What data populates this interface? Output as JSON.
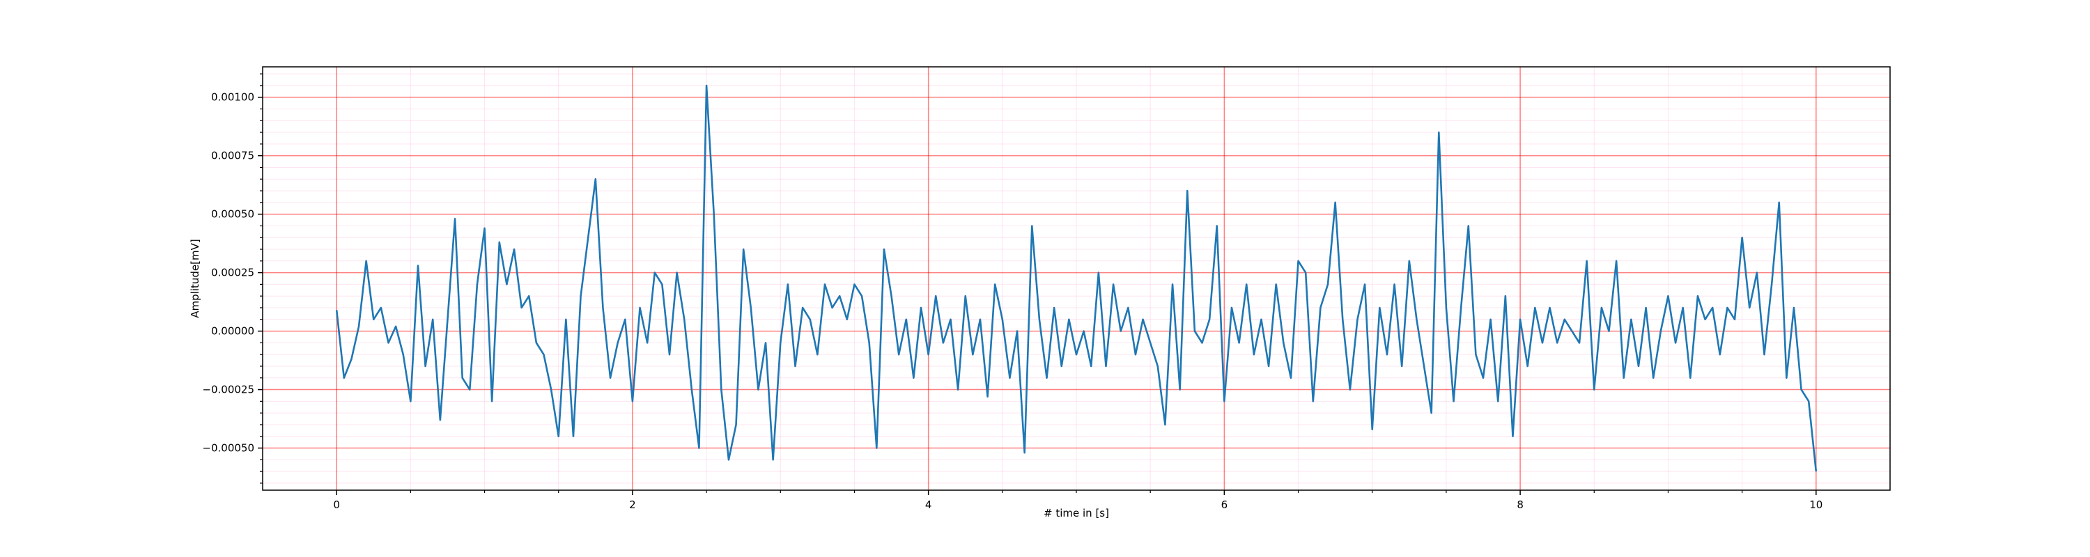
{
  "chart_data": {
    "type": "line",
    "xlabel": "# time in [s]",
    "ylabel": "Amplitude[mV]",
    "color": "#1f77b4",
    "grid": true,
    "minor_grid": true,
    "xlim": [
      -0.5,
      10.5
    ],
    "ylim": [
      -0.00068,
      0.00113
    ],
    "xticks": [
      0,
      2,
      4,
      6,
      8,
      10
    ],
    "yticks": [
      {
        "value": -0.0005,
        "label": "−0.00050"
      },
      {
        "value": -0.00025,
        "label": "−0.00025"
      },
      {
        "value": 0,
        "label": "0.00000"
      },
      {
        "value": 0.00025,
        "label": "0.00025"
      },
      {
        "value": 0.0005,
        "label": "0.00050"
      },
      {
        "value": 0.00075,
        "label": "0.00075"
      },
      {
        "value": 0.001,
        "label": "0.00100"
      }
    ],
    "xminorticks": [
      0.5,
      1,
      1.5,
      2.5,
      3,
      3.5,
      4.5,
      5,
      5.5,
      6.5,
      7,
      7.5,
      8.5,
      9,
      9.5
    ],
    "yminorticks": [
      -0.00065,
      -0.0006,
      -0.00055,
      -0.00045,
      -0.0004,
      -0.00035,
      -0.0003,
      -0.0002,
      -0.00015,
      -0.0001,
      -5e-05,
      5e-05,
      0.0001,
      0.00015,
      0.0002,
      0.0003,
      0.00035,
      0.0004,
      0.00045,
      0.00055,
      0.0006,
      0.00065,
      0.0007,
      0.0008,
      0.00085,
      0.0009,
      0.00095,
      0.00105,
      0.0011
    ],
    "x": [
      0,
      0.05,
      0.1,
      0.15,
      0.2,
      0.25,
      0.3,
      0.35,
      0.4,
      0.45,
      0.5,
      0.55,
      0.6,
      0.65,
      0.7,
      0.75,
      0.8,
      0.85,
      0.9,
      0.95,
      1,
      1.05,
      1.1,
      1.15,
      1.2,
      1.25,
      1.3,
      1.35,
      1.4,
      1.45,
      1.5,
      1.55,
      1.6,
      1.65,
      1.7,
      1.75,
      1.8,
      1.85,
      1.9,
      1.95,
      2,
      2.05,
      2.1,
      2.15,
      2.2,
      2.25,
      2.3,
      2.35,
      2.4,
      2.45,
      2.5,
      2.55,
      2.6,
      2.65,
      2.7,
      2.75,
      2.8,
      2.85,
      2.9,
      2.95,
      3,
      3.05,
      3.1,
      3.15,
      3.2,
      3.25,
      3.3,
      3.35,
      3.4,
      3.45,
      3.5,
      3.55,
      3.6,
      3.65,
      3.7,
      3.75,
      3.8,
      3.85,
      3.9,
      3.95,
      4,
      4.05,
      4.1,
      4.15,
      4.2,
      4.25,
      4.3,
      4.35,
      4.4,
      4.45,
      4.5,
      4.55,
      4.6,
      4.65,
      4.7,
      4.75,
      4.8,
      4.85,
      4.9,
      4.95,
      5,
      5.05,
      5.1,
      5.15,
      5.2,
      5.25,
      5.3,
      5.35,
      5.4,
      5.45,
      5.5,
      5.55,
      5.6,
      5.65,
      5.7,
      5.75,
      5.8,
      5.85,
      5.9,
      5.95,
      6,
      6.05,
      6.1,
      6.15,
      6.2,
      6.25,
      6.3,
      6.35,
      6.4,
      6.45,
      6.5,
      6.55,
      6.6,
      6.65,
      6.7,
      6.75,
      6.8,
      6.85,
      6.9,
      6.95,
      7,
      7.05,
      7.1,
      7.15,
      7.2,
      7.25,
      7.3,
      7.35,
      7.4,
      7.45,
      7.5,
      7.55,
      7.6,
      7.65,
      7.7,
      7.75,
      7.8,
      7.85,
      7.9,
      7.95,
      8,
      8.05,
      8.1,
      8.15,
      8.2,
      8.25,
      8.3,
      8.35,
      8.4,
      8.45,
      8.5,
      8.55,
      8.6,
      8.65,
      8.7,
      8.75,
      8.8,
      8.85,
      8.9,
      8.95,
      9,
      9.05,
      9.1,
      9.15,
      9.2,
      9.25,
      9.3,
      9.35,
      9.4,
      9.45,
      9.5,
      9.55,
      9.6,
      9.65,
      9.7,
      9.75,
      9.8,
      9.85,
      9.9,
      9.95,
      10
    ],
    "values": [
      9e-05,
      -0.0002,
      -0.00012,
      2e-05,
      0.0003,
      5e-05,
      0.0001,
      -5e-05,
      2e-05,
      -0.0001,
      -0.0003,
      0.00028,
      -0.00015,
      5e-05,
      -0.00038,
      5e-05,
      0.00048,
      -0.0002,
      -0.00025,
      0.0002,
      0.00044,
      -0.0003,
      0.00038,
      0.0002,
      0.00035,
      0.0001,
      0.00015,
      -5e-05,
      -0.0001,
      -0.00025,
      -0.00045,
      5e-05,
      -0.00045,
      0.00015,
      0.0004,
      0.00065,
      0.0001,
      -0.0002,
      -5e-05,
      5e-05,
      -0.0003,
      0.0001,
      -5e-05,
      0.00025,
      0.0002,
      -0.0001,
      0.00025,
      5e-05,
      -0.00025,
      -0.0005,
      0.00105,
      0.0005,
      -0.00025,
      -0.00055,
      -0.0004,
      0.00035,
      0.0001,
      -0.00025,
      -5e-05,
      -0.00055,
      -5e-05,
      0.0002,
      -0.00015,
      0.0001,
      5e-05,
      -0.0001,
      0.0002,
      0.0001,
      0.00015,
      5e-05,
      0.0002,
      0.00015,
      -5e-05,
      -0.0005,
      0.00035,
      0.00015,
      -0.0001,
      5e-05,
      -0.0002,
      0.0001,
      -0.0001,
      0.00015,
      -5e-05,
      5e-05,
      -0.00025,
      0.00015,
      -0.0001,
      5e-05,
      -0.00028,
      0.0002,
      5e-05,
      -0.0002,
      0,
      -0.00052,
      0.00045,
      5e-05,
      -0.0002,
      0.0001,
      -0.00015,
      5e-05,
      -0.0001,
      0,
      -0.00015,
      0.00025,
      -0.00015,
      0.0002,
      0,
      0.0001,
      -0.0001,
      5e-05,
      -5e-05,
      -0.00015,
      -0.0004,
      0.0002,
      -0.00025,
      0.0006,
      0,
      -5e-05,
      5e-05,
      0.00045,
      -0.0003,
      0.0001,
      -5e-05,
      0.0002,
      -0.0001,
      5e-05,
      -0.00015,
      0.0002,
      -5e-05,
      -0.0002,
      0.0003,
      0.00025,
      -0.0003,
      0.0001,
      0.0002,
      0.00055,
      5e-05,
      -0.00025,
      5e-05,
      0.0002,
      -0.00042,
      0.0001,
      -0.0001,
      0.0002,
      -0.00015,
      0.0003,
      5e-05,
      -0.00015,
      -0.00035,
      0.00085,
      0.0001,
      -0.0003,
      0.0001,
      0.00045,
      -0.0001,
      -0.0002,
      5e-05,
      -0.0003,
      0.00015,
      -0.00045,
      5e-05,
      -0.00015,
      0.0001,
      -5e-05,
      0.0001,
      -5e-05,
      5e-05,
      0,
      -5e-05,
      0.0003,
      -0.00025,
      0.0001,
      0,
      0.0003,
      -0.0002,
      5e-05,
      -0.00015,
      0.0001,
      -0.0002,
      0,
      0.00015,
      -5e-05,
      0.0001,
      -0.0002,
      0.00015,
      5e-05,
      0.0001,
      -0.0001,
      0.0001,
      5e-05,
      0.0004,
      0.0001,
      0.00025,
      -0.0001,
      0.0002,
      0.00055,
      -0.0002,
      0.0001,
      -0.00025,
      -0.0003,
      -0.0006
    ]
  }
}
